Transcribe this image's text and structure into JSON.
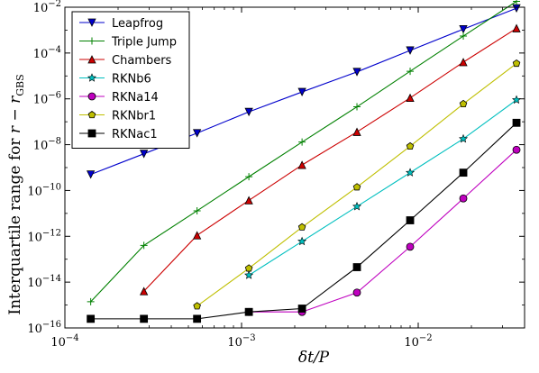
{
  "chart_data": {
    "type": "line",
    "xscale": "log",
    "yscale": "log",
    "xlim": [
      0.0001,
      0.04
    ],
    "ylim": [
      1e-16,
      0.01
    ],
    "xlabel": "δt/P",
    "ylabel_text": "Interquartile range for ",
    "ylabel_math": "r − r",
    "ylabel_sub": "GBS",
    "x_ticks": [
      {
        "value": 0.0001,
        "base": "10",
        "exp": "−4"
      },
      {
        "value": 0.001,
        "base": "10",
        "exp": "−3"
      },
      {
        "value": 0.01,
        "base": "10",
        "exp": "−2"
      }
    ],
    "y_ticks": [
      {
        "value": 1e-16,
        "base": "10",
        "exp": "−16"
      },
      {
        "value": 1e-14,
        "base": "10",
        "exp": "−14"
      },
      {
        "value": 1e-12,
        "base": "10",
        "exp": "−12"
      },
      {
        "value": 1e-10,
        "base": "10",
        "exp": "−10"
      },
      {
        "value": 1e-08,
        "base": "10",
        "exp": "−8"
      },
      {
        "value": 1e-06,
        "base": "10",
        "exp": "−6"
      },
      {
        "value": 0.0001,
        "base": "10",
        "exp": "−4"
      },
      {
        "value": 0.01,
        "base": "10",
        "exp": "−2"
      }
    ],
    "x": [
      0.00014,
      0.00028,
      0.00056,
      0.0011,
      0.0022,
      0.0045,
      0.009,
      0.018,
      0.036
    ],
    "legend_position": "upper-left",
    "series": [
      {
        "name": "Leapfrog",
        "color": "#0000cc",
        "marker": "triangle-down",
        "values": [
          5e-10,
          4e-09,
          3.2e-08,
          2.7e-07,
          2e-06,
          1.5e-05,
          0.00013,
          0.0011,
          0.009
        ]
      },
      {
        "name": "Triple Jump",
        "color": "#008000",
        "marker": "plus",
        "values": [
          1.4e-15,
          4e-13,
          1.3e-11,
          4e-10,
          1.3e-08,
          4.5e-07,
          1.6e-05,
          0.00055,
          0.018
        ]
      },
      {
        "name": "Chambers",
        "color": "#cc0000",
        "marker": "triangle-up",
        "values": [
          null,
          4e-15,
          1.1e-12,
          3.7e-11,
          1.3e-09,
          3.6e-08,
          1.1e-06,
          4e-05,
          0.0012
        ]
      },
      {
        "name": "RKNb6",
        "color": "#00bfbf",
        "marker": "star",
        "values": [
          null,
          null,
          null,
          2e-14,
          6e-13,
          2e-11,
          6e-10,
          1.8e-08,
          9e-07
        ]
      },
      {
        "name": "RKNa14",
        "color": "#bf00bf",
        "marker": "circle",
        "values": [
          null,
          null,
          null,
          5e-16,
          5e-16,
          3.5e-15,
          3.5e-13,
          4.5e-11,
          6e-09
        ]
      },
      {
        "name": "RKNbr1",
        "color": "#bfbf00",
        "marker": "pentagon",
        "values": [
          null,
          null,
          9e-16,
          4e-14,
          2.5e-12,
          1.4e-10,
          8.5e-09,
          6e-07,
          3.5e-05
        ]
      },
      {
        "name": "RKNac1",
        "color": "#000000",
        "marker": "square",
        "values": [
          2.5e-16,
          2.5e-16,
          2.5e-16,
          5e-16,
          7e-16,
          4.5e-14,
          5e-12,
          6e-10,
          9e-08
        ]
      }
    ]
  }
}
